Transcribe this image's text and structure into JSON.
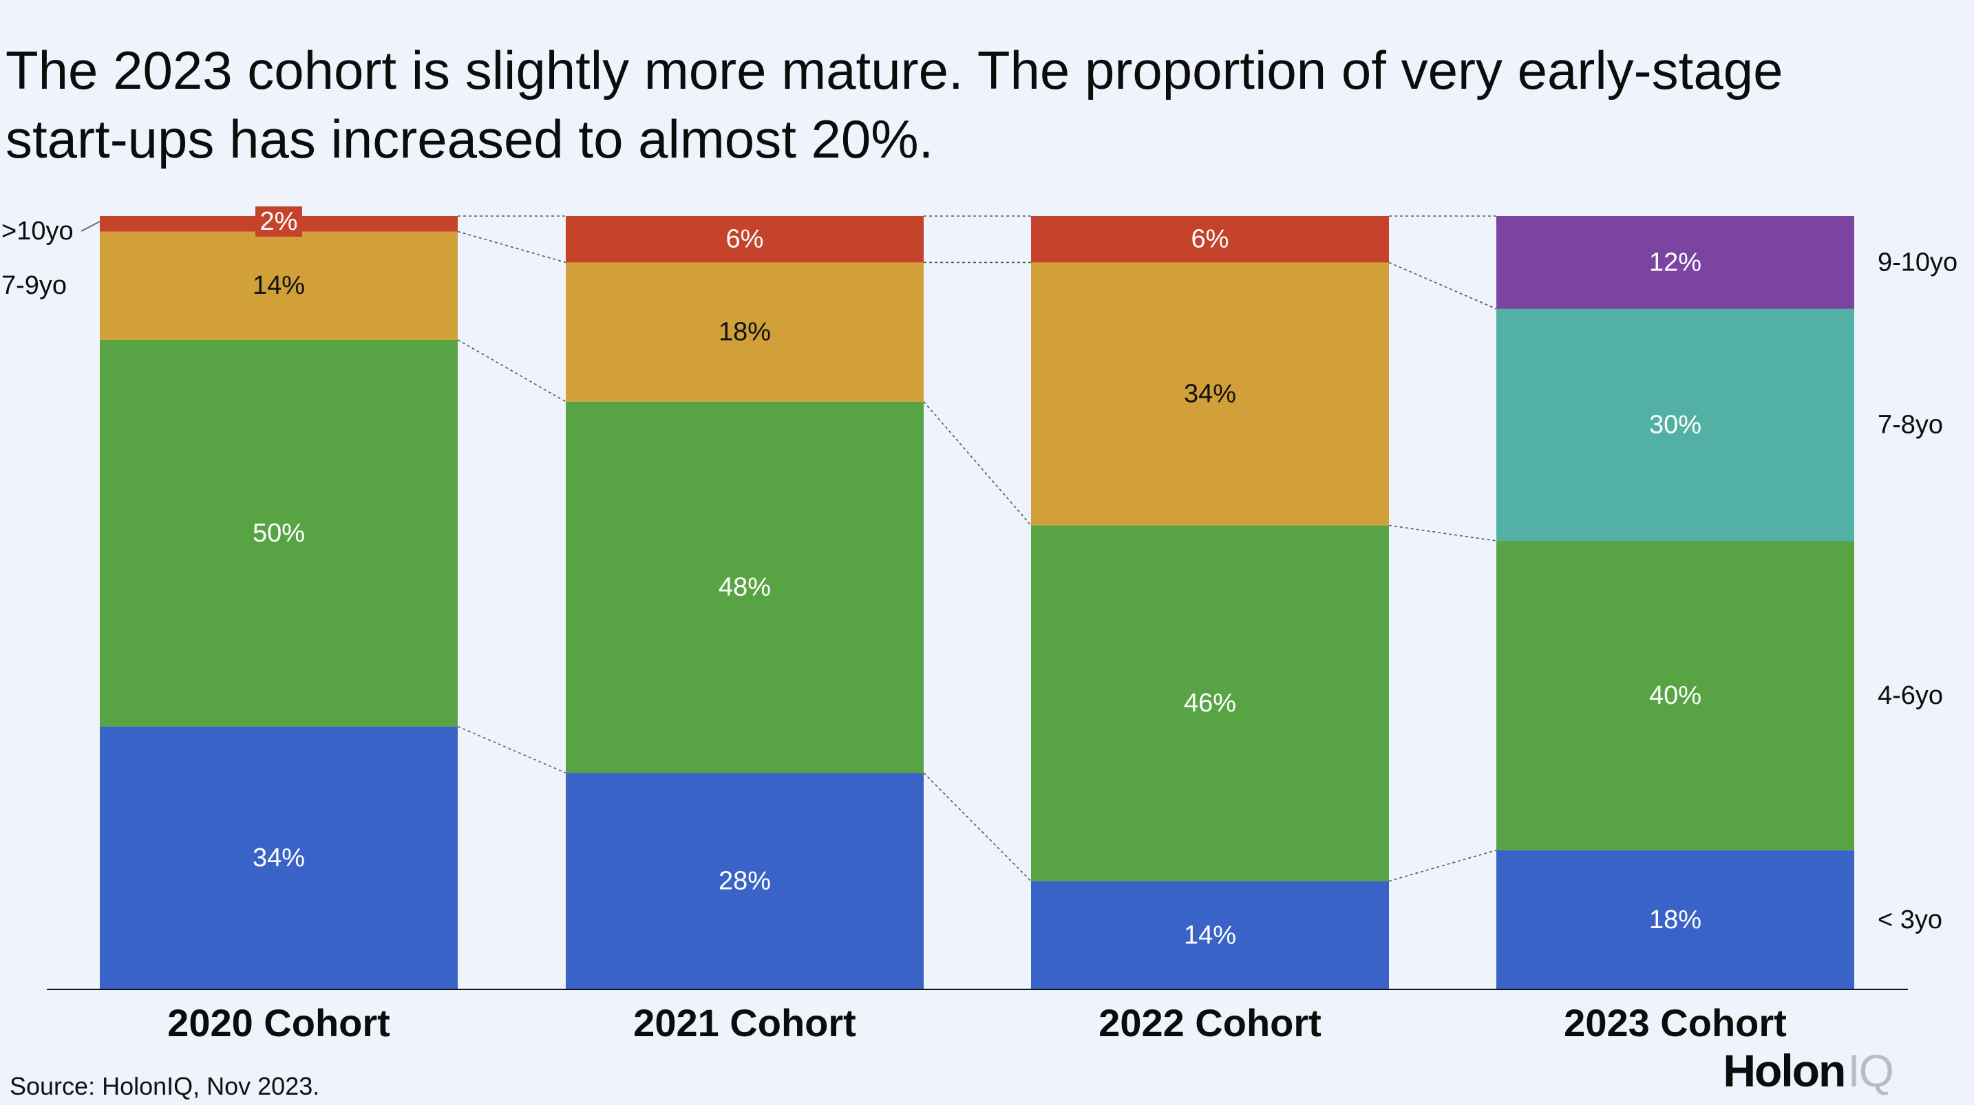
{
  "chart_data": {
    "type": "bar",
    "stacked": true,
    "normalized": true,
    "title": "The 2023 cohort is slightly more mature. The proportion of very early-stage start-ups has increased to almost 20%.",
    "categories": [
      "2020 Cohort",
      "2021 Cohort",
      "2022 Cohort",
      "2023 Cohort"
    ],
    "ylim": [
      0,
      100
    ],
    "grid": false,
    "bars": [
      {
        "category": "2020 Cohort",
        "segments": [
          {
            "name": "< 3yo",
            "value": 34,
            "label": "34%",
            "color": "#3a63c8",
            "text_color": "#ffffff"
          },
          {
            "name": "4-6yo",
            "value": 50,
            "label": "50%",
            "color": "#58a445",
            "text_color": "#ffffff"
          },
          {
            "name": "7-9yo",
            "value": 14,
            "label": "14%",
            "color": "#d2a038",
            "text_color": "#111111"
          },
          {
            "name": ">10yo",
            "value": 2,
            "label": "2%",
            "color": "#c5432a",
            "text_color": "#ffffff"
          }
        ]
      },
      {
        "category": "2021 Cohort",
        "segments": [
          {
            "name": "< 3yo",
            "value": 28,
            "label": "28%",
            "color": "#3a63c8",
            "text_color": "#ffffff"
          },
          {
            "name": "4-6yo",
            "value": 48,
            "label": "48%",
            "color": "#58a445",
            "text_color": "#ffffff"
          },
          {
            "name": "7-9yo",
            "value": 18,
            "label": "18%",
            "color": "#d2a038",
            "text_color": "#111111"
          },
          {
            "name": ">10yo",
            "value": 6,
            "label": "6%",
            "color": "#c5432a",
            "text_color": "#ffffff"
          }
        ]
      },
      {
        "category": "2022 Cohort",
        "segments": [
          {
            "name": "< 3yo",
            "value": 14,
            "label": "14%",
            "color": "#3a63c8",
            "text_color": "#ffffff"
          },
          {
            "name": "4-6yo",
            "value": 46,
            "label": "46%",
            "color": "#58a445",
            "text_color": "#ffffff"
          },
          {
            "name": "7-9yo",
            "value": 34,
            "label": "34%",
            "color": "#d2a038",
            "text_color": "#111111"
          },
          {
            "name": ">10yo",
            "value": 6,
            "label": "6%",
            "color": "#c5432a",
            "text_color": "#ffffff"
          }
        ]
      },
      {
        "category": "2023 Cohort",
        "segments": [
          {
            "name": "< 3yo",
            "value": 18,
            "label": "18%",
            "color": "#3a63c8",
            "text_color": "#ffffff"
          },
          {
            "name": "4-6yo",
            "value": 40,
            "label": "40%",
            "color": "#58a445",
            "text_color": "#ffffff"
          },
          {
            "name": "7-8yo",
            "value": 30,
            "label": "30%",
            "color": "#52b1a4",
            "text_color": "#ffffff"
          },
          {
            "name": "9-10yo",
            "value": 12,
            "label": "12%",
            "color": "#7b44a0",
            "text_color": "#ffffff"
          }
        ]
      }
    ],
    "left_legend": [
      ">10yo",
      "7-9yo"
    ],
    "right_legend": [
      "9-10yo",
      "7-8yo",
      "4-6yo",
      "< 3yo"
    ]
  },
  "source": "Source: HolonIQ, Nov 2023.",
  "logo": {
    "main": "Holon",
    "accent": "IQ"
  }
}
